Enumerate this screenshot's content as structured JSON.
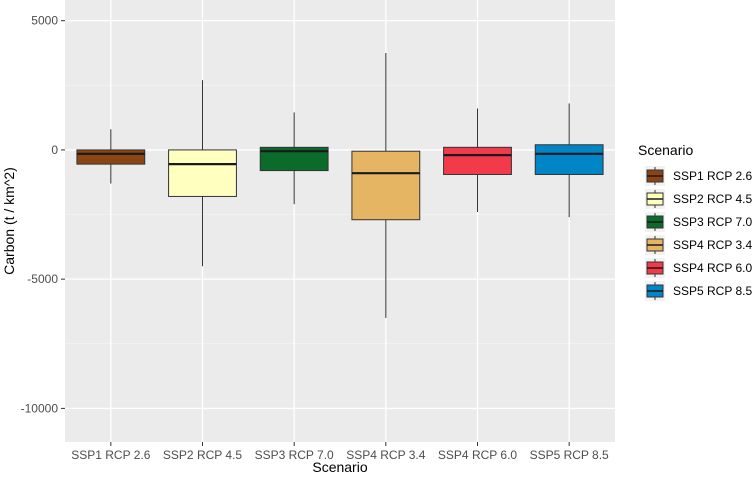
{
  "chart_data": {
    "type": "boxplot",
    "title": "",
    "xlabel": "Scenario",
    "ylabel": "Carbon (t / km^2)",
    "ylim": [
      -11300,
      5800
    ],
    "yticks": [
      5000,
      0,
      -5000,
      -10000
    ],
    "ytick_labels": [
      "5000",
      "0",
      "-5000",
      "-10000"
    ],
    "grid": true,
    "legend": {
      "title": "Scenario",
      "position": "right"
    },
    "series": [
      {
        "name": "SSP1 RCP 2.6",
        "color": "#8b4513",
        "whisker_low": -1300,
        "q1": -550,
        "median": -150,
        "q3": 0,
        "whisker_high": 800
      },
      {
        "name": "SSP2 RCP 4.5",
        "color": "#ffffc0",
        "whisker_low": -4500,
        "q1": -1800,
        "median": -550,
        "q3": 0,
        "whisker_high": 2700
      },
      {
        "name": "SSP3 RCP 7.0",
        "color": "#0a6b2a",
        "whisker_low": -2100,
        "q1": -800,
        "median": -50,
        "q3": 100,
        "whisker_high": 1450
      },
      {
        "name": "SSP4 RCP 3.4",
        "color": "#e6b564",
        "whisker_low": -6500,
        "q1": -2700,
        "median": -900,
        "q3": -50,
        "whisker_high": 3750
      },
      {
        "name": "SSP4 RCP 6.0",
        "color": "#f23a4a",
        "whisker_low": -2400,
        "q1": -950,
        "median": -200,
        "q3": 100,
        "whisker_high": 1600
      },
      {
        "name": "SSP5 RCP 8.5",
        "color": "#0085c7",
        "whisker_low": -2600,
        "q1": -950,
        "median": -150,
        "q3": 200,
        "whisker_high": 1800
      }
    ]
  }
}
